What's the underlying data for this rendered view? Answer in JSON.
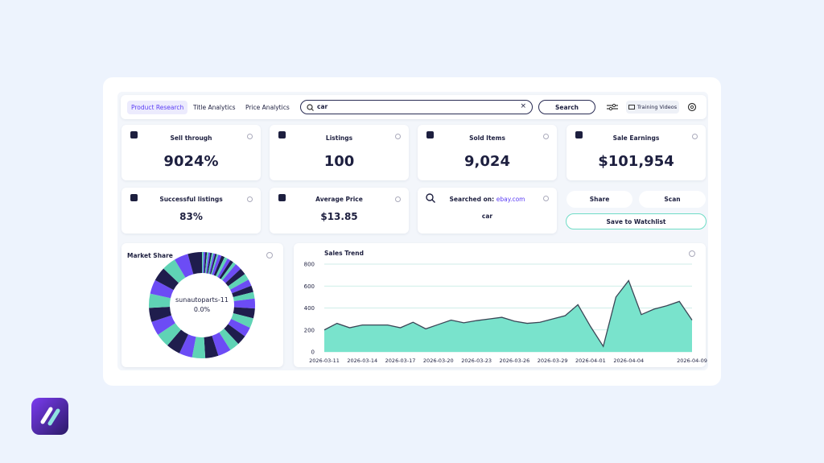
{
  "nav": {
    "tabs": [
      "Product Research",
      "Title Analytics",
      "Price Analytics"
    ],
    "search_query": "car",
    "search_button": "Search",
    "training_button": "Training Videos"
  },
  "stats": [
    {
      "label": "Sell through",
      "value": "9024%"
    },
    {
      "label": "Listings",
      "value": "100"
    },
    {
      "label": "Sold Items",
      "value": "9,024"
    },
    {
      "label": "Sale Earnings",
      "value": "$101,954"
    },
    {
      "label": "Successful listings",
      "value": "83%"
    },
    {
      "label": "Average Price",
      "value": "$13.85"
    }
  ],
  "searched": {
    "label": "Searched on:",
    "site": "ebay.com",
    "query": "car"
  },
  "actions": {
    "share": "Share",
    "scan": "Scan",
    "watchlist": "Save to Watchlist"
  },
  "chart_data": [
    {
      "type": "pie",
      "title": "Market Share",
      "center_label": "sunautoparts-11",
      "center_value": "0.0%",
      "values": [
        0.5,
        0.5,
        0.5,
        0.5,
        0.5,
        0.5,
        0.5,
        0.5,
        0.5,
        0.5,
        1,
        1,
        1,
        1,
        1,
        1,
        2,
        2,
        2,
        2,
        2,
        2,
        3,
        3,
        3,
        3,
        3,
        3,
        4,
        4,
        4,
        4,
        4.3,
        4.3,
        4.3,
        4.3,
        4.3,
        4.3,
        4.3,
        4.3,
        4.3,
        4.3
      ],
      "colors": [
        "#5fd3b5",
        "#6c4cf5",
        "#1f1d4d"
      ]
    },
    {
      "type": "area",
      "title": "Sales Trend",
      "color": "#79e3cc",
      "line_color": "#3b4656",
      "categories": [
        "2026-03-11",
        null,
        null,
        "2026-03-14",
        null,
        null,
        "2026-03-17",
        null,
        null,
        "2026-03-20",
        null,
        null,
        "2026-03-23",
        null,
        null,
        "2026-03-26",
        null,
        null,
        "2026-03-29",
        null,
        null,
        "2026-04-01",
        null,
        null,
        "2026-04-04",
        null,
        null,
        null,
        null,
        "2026-04-09"
      ],
      "values": [
        200,
        260,
        220,
        245,
        245,
        245,
        220,
        270,
        210,
        250,
        290,
        265,
        285,
        300,
        315,
        280,
        260,
        270,
        300,
        330,
        430,
        230,
        50,
        500,
        650,
        340,
        390,
        420,
        460,
        290
      ],
      "ylim": [
        0,
        800
      ],
      "yticks": [
        0,
        200,
        400,
        600,
        800
      ],
      "grid": true
    }
  ]
}
